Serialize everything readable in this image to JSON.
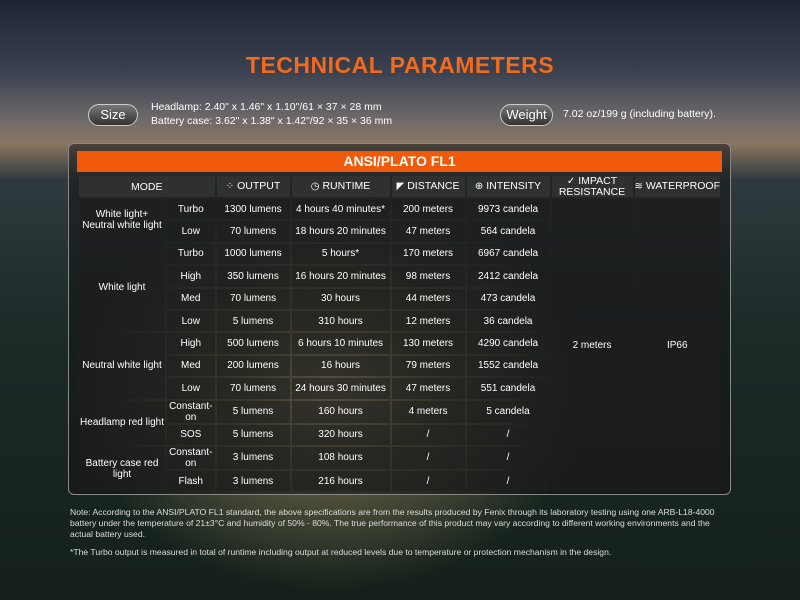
{
  "title": "TECHNICAL PARAMETERS",
  "size": {
    "label": "Size",
    "headlamp": "Headlamp: 2.40\" x 1.46\" x 1.10\"/61 × 37 × 28 mm",
    "battery_case": "Battery case: 3.62\" x 1.38\" x 1.42\"/92 × 35 × 36 mm"
  },
  "weight": {
    "label": "Weight",
    "value": "7.02 oz/199 g (including battery)."
  },
  "table": {
    "standard": "ANSI/PLATO FL1",
    "headers": {
      "mode": "MODE",
      "output": "OUTPUT",
      "runtime": "RUNTIME",
      "distance": "DISTANCE",
      "intensity": "INTENSITY",
      "impact": "IMPACT RESISTANCE",
      "waterproof": "WATERPROOF"
    },
    "impact": "2 meters",
    "waterproof": "IP66",
    "groups": [
      {
        "name": "White light+ Neutral white light",
        "rows": [
          [
            "Turbo",
            "1300 lumens",
            "4 hours 40 minutes*",
            "200 meters",
            "9973 candela"
          ],
          [
            "Low",
            "70 lumens",
            "18 hours 20 minutes",
            "47 meters",
            "564 candela"
          ]
        ]
      },
      {
        "name": "White light",
        "rows": [
          [
            "Turbo",
            "1000 lumens",
            "5 hours*",
            "170 meters",
            "6967 candela"
          ],
          [
            "High",
            "350 lumens",
            "16 hours 20 minutes",
            "98 meters",
            "2412 candela"
          ],
          [
            "Med",
            "70 lumens",
            "30 hours",
            "44 meters",
            "473 candela"
          ],
          [
            "Low",
            "5 lumens",
            "310 hours",
            "12 meters",
            "36 candela"
          ]
        ]
      },
      {
        "name": "Neutral white light",
        "rows": [
          [
            "High",
            "500 lumens",
            "6 hours 10 minutes",
            "130 meters",
            "4290 candela"
          ],
          [
            "Med",
            "200 lumens",
            "16 hours",
            "79 meters",
            "1552 candela"
          ],
          [
            "Low",
            "70 lumens",
            "24 hours 30 minutes",
            "47 meters",
            "551 candela"
          ]
        ]
      },
      {
        "name": "Headlamp red light",
        "rows": [
          [
            "Constant-on",
            "5 lumens",
            "160 hours",
            "4 meters",
            "5 candela"
          ],
          [
            "SOS",
            "5 lumens",
            "320 hours",
            "/",
            "/"
          ]
        ]
      },
      {
        "name": "Battery case red light",
        "rows": [
          [
            "Constant-on",
            "3 lumens",
            "108 hours",
            "/",
            "/"
          ],
          [
            "Flash",
            "3 lumens",
            "216 hours",
            "/",
            "/"
          ]
        ]
      }
    ]
  },
  "notes": {
    "note": "Note: According to the ANSI/PLATO FL1 standard, the above specifications are from the results produced by Fenix through its laboratory testing using one ARB-L18-4000 battery under the temperature of 21±3°C and humidity of 50% - 80%. The true performance of this product may vary according to different working environments and the actual battery used.",
    "turbo": "*The Turbo output is measured in total of runtime including output at reduced levels due to temperature or protection mechanism in the design."
  }
}
